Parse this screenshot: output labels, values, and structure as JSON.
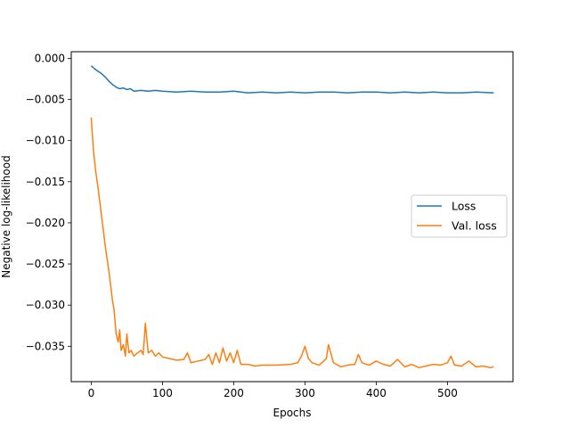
{
  "chart_data": {
    "type": "line",
    "xlabel": "Epochs",
    "ylabel": "Negative log-likelihood",
    "xlim": [
      -28,
      592
    ],
    "ylim": [
      -0.0393,
      0.0008
    ],
    "xticks": [
      0,
      100,
      200,
      300,
      400,
      500
    ],
    "yticks": [
      0.0,
      -0.005,
      -0.01,
      -0.015,
      -0.02,
      -0.025,
      -0.03,
      -0.035
    ],
    "ytick_labels": [
      "0.000",
      "−0.005",
      "−0.010",
      "−0.015",
      "−0.020",
      "−0.025",
      "−0.030",
      "−0.035"
    ],
    "xtick_labels": [
      "0",
      "100",
      "200",
      "300",
      "400",
      "500"
    ],
    "grid": false,
    "legend_position": "center-right",
    "series": [
      {
        "name": "Loss",
        "color": "#1f77b4",
        "x": [
          0,
          5,
          10,
          15,
          20,
          25,
          30,
          35,
          40,
          45,
          50,
          55,
          60,
          70,
          80,
          90,
          100,
          120,
          140,
          160,
          180,
          200,
          220,
          240,
          260,
          280,
          300,
          320,
          340,
          360,
          380,
          400,
          420,
          440,
          460,
          480,
          500,
          520,
          540,
          565
        ],
        "y": [
          -0.0009,
          -0.0013,
          -0.0016,
          -0.0019,
          -0.0023,
          -0.0028,
          -0.0032,
          -0.0035,
          -0.0037,
          -0.0036,
          -0.0038,
          -0.0037,
          -0.004,
          -0.0039,
          -0.004,
          -0.0039,
          -0.004,
          -0.0041,
          -0.004,
          -0.0041,
          -0.0041,
          -0.004,
          -0.0042,
          -0.0041,
          -0.0042,
          -0.0041,
          -0.0042,
          -0.0041,
          -0.0041,
          -0.0042,
          -0.0041,
          -0.0041,
          -0.0042,
          -0.0041,
          -0.0042,
          -0.0041,
          -0.0042,
          -0.0042,
          -0.0041,
          -0.0042
        ]
      },
      {
        "name": "Val. loss",
        "color": "#ff7f0e",
        "x": [
          0,
          3,
          6,
          10,
          15,
          20,
          25,
          30,
          32,
          35,
          38,
          40,
          42,
          45,
          48,
          50,
          53,
          56,
          60,
          65,
          70,
          73,
          76,
          80,
          85,
          90,
          95,
          100,
          110,
          120,
          130,
          135,
          140,
          150,
          160,
          165,
          170,
          175,
          180,
          185,
          190,
          195,
          200,
          205,
          210,
          220,
          230,
          240,
          260,
          280,
          290,
          295,
          300,
          305,
          310,
          320,
          330,
          333,
          340,
          350,
          360,
          370,
          375,
          380,
          390,
          400,
          410,
          420,
          430,
          440,
          450,
          460,
          470,
          480,
          490,
          500,
          505,
          510,
          520,
          530,
          540,
          550,
          560,
          565
        ],
        "y": [
          -0.0072,
          -0.011,
          -0.0135,
          -0.016,
          -0.0195,
          -0.023,
          -0.026,
          -0.0295,
          -0.0305,
          -0.0335,
          -0.0345,
          -0.033,
          -0.0355,
          -0.0348,
          -0.0362,
          -0.0335,
          -0.0358,
          -0.0355,
          -0.0362,
          -0.0358,
          -0.0355,
          -0.036,
          -0.0322,
          -0.0358,
          -0.0355,
          -0.0362,
          -0.0358,
          -0.0363,
          -0.0365,
          -0.0367,
          -0.0366,
          -0.0358,
          -0.037,
          -0.0368,
          -0.0366,
          -0.036,
          -0.0372,
          -0.0358,
          -0.037,
          -0.0352,
          -0.0368,
          -0.0358,
          -0.037,
          -0.0355,
          -0.0372,
          -0.0372,
          -0.0374,
          -0.0373,
          -0.0373,
          -0.0372,
          -0.037,
          -0.0362,
          -0.035,
          -0.0365,
          -0.037,
          -0.0373,
          -0.0365,
          -0.0348,
          -0.037,
          -0.0375,
          -0.0373,
          -0.0372,
          -0.036,
          -0.037,
          -0.0373,
          -0.0368,
          -0.0372,
          -0.0374,
          -0.0366,
          -0.0375,
          -0.0372,
          -0.0376,
          -0.0374,
          -0.0372,
          -0.0373,
          -0.037,
          -0.0362,
          -0.0373,
          -0.0374,
          -0.0368,
          -0.0375,
          -0.0374,
          -0.0376,
          -0.0375
        ]
      }
    ]
  }
}
